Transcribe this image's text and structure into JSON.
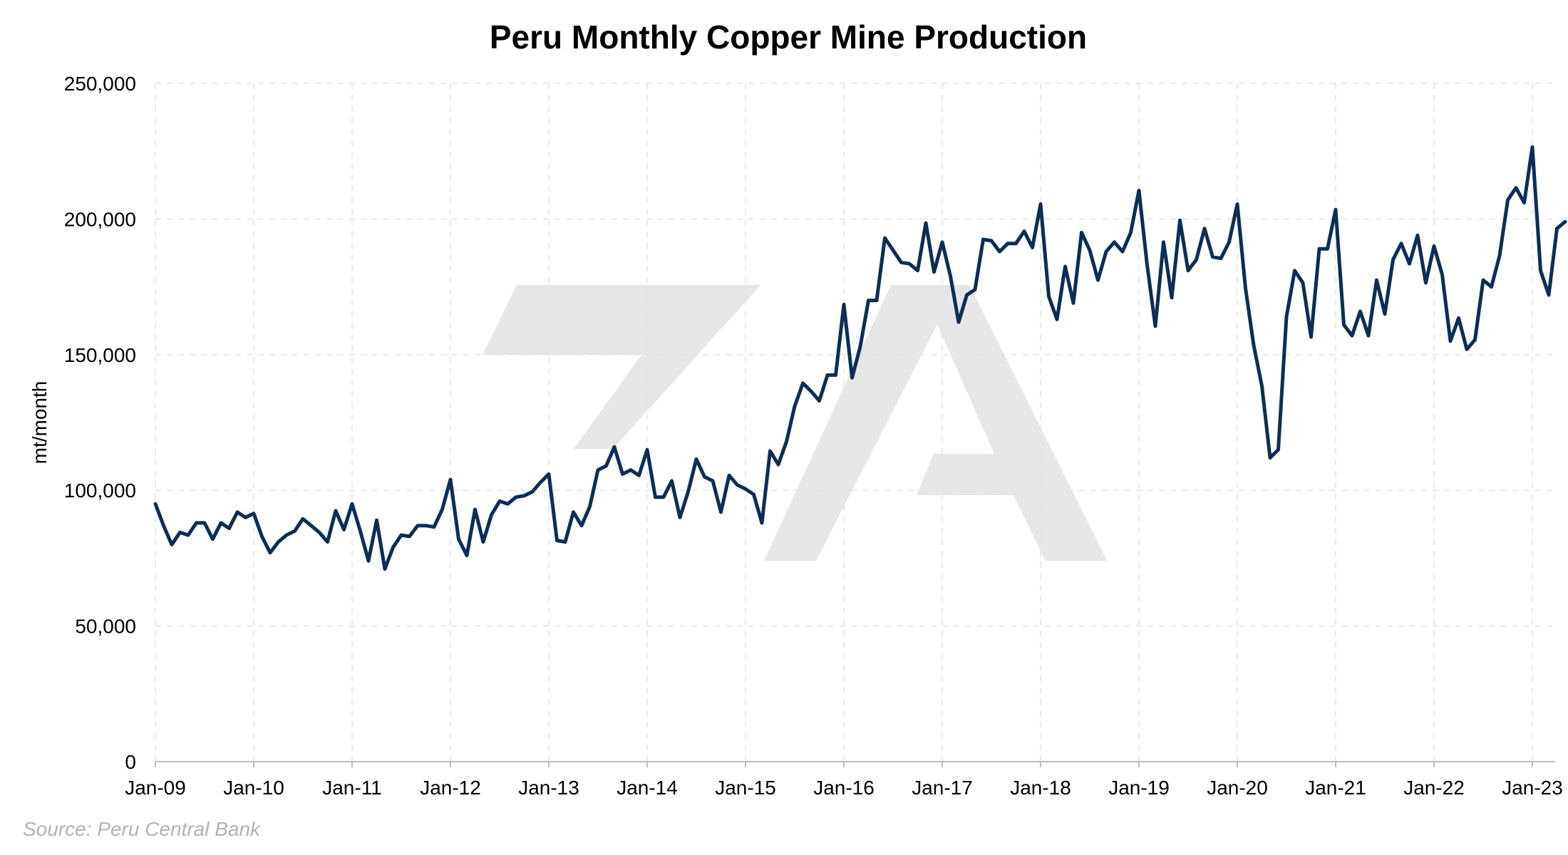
{
  "chart_data": {
    "type": "line",
    "title": "Peru Monthly Copper Mine Production",
    "ylabel": "mt/month",
    "ylim": [
      0,
      250000
    ],
    "yticks": [
      0,
      50000,
      100000,
      150000,
      200000,
      250000
    ],
    "ytick_labels": [
      "0",
      "50,000",
      "100,000",
      "150,000",
      "200,000",
      "250,000"
    ],
    "xticks": [
      "Jan-09",
      "Jan-10",
      "Jan-11",
      "Jan-12",
      "Jan-13",
      "Jan-14",
      "Jan-15",
      "Jan-16",
      "Jan-17",
      "Jan-18",
      "Jan-19",
      "Jan-20",
      "Jan-21",
      "Jan-22",
      "Jan-23"
    ],
    "x_start": "2009-01",
    "grid": true,
    "line_color": "#0d2d57",
    "series": [
      {
        "values": [
          95000,
          87000,
          80000,
          84500,
          83500,
          88000,
          88000,
          82000,
          88000,
          86000,
          92000,
          90000,
          91500,
          83000,
          77000,
          81000,
          83500,
          85000,
          89500,
          87000,
          84500,
          81000,
          92500,
          85500,
          95000,
          85000,
          74000,
          89000,
          71000,
          79000,
          83500,
          83000,
          87000,
          87000,
          86500,
          93000,
          104000,
          82000,
          76000,
          93000,
          81000,
          91000,
          96000,
          95000,
          97500,
          98000,
          99500,
          103000,
          106000,
          81500,
          81000,
          92000,
          87000,
          94000,
          107500,
          109000,
          116000,
          106000,
          107500,
          105500,
          115000,
          97500,
          97500,
          103500,
          90000,
          99500,
          111500,
          105000,
          103500,
          92000,
          105500,
          102000,
          100500,
          98500,
          88000,
          114500,
          109500,
          118000,
          131000,
          139500,
          136500,
          133000,
          142500,
          142500,
          168500,
          141500,
          153000,
          170000,
          170000,
          193000,
          188500,
          184000,
          183500,
          181000,
          198500,
          180500,
          191500,
          179000,
          162000,
          172000,
          174000,
          192500,
          192000,
          188000,
          191000,
          191000,
          195500,
          189500,
          205500,
          171500,
          163000,
          182500,
          169000,
          195000,
          188500,
          177500,
          188000,
          191500,
          188000,
          195000,
          210500,
          183000,
          160500,
          191500,
          171000,
          199500,
          181000,
          185000,
          196500,
          186000,
          185500,
          191500,
          205500,
          174500,
          153500,
          138500,
          112000,
          115000,
          164000,
          181000,
          176500,
          156500,
          189000,
          189000,
          203500,
          161000,
          157000,
          166000,
          157000,
          177500,
          165000,
          185000,
          191000,
          183500,
          194000,
          176500,
          190000,
          179500,
          155000,
          163500,
          152000,
          155500,
          177500,
          175000,
          186500,
          207000,
          211500,
          206000,
          226500,
          181000,
          172000,
          196500,
          199000
        ]
      }
    ]
  },
  "source_note": "Source: Peru Central Bank"
}
